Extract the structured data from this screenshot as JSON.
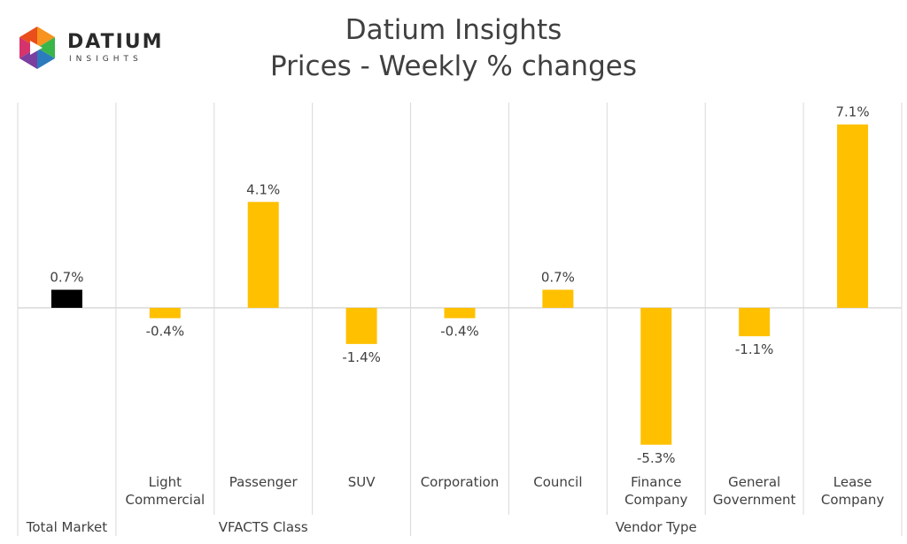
{
  "title": "Datium Insights",
  "subtitle": "Prices - Weekly % changes",
  "logo": {
    "word": "DATIUM",
    "sub": "INSIGHTS"
  },
  "colors": {
    "total": "#000000",
    "bar": "#FFC000",
    "grid": "#D9D9D9",
    "text": "#404040"
  },
  "chart_data": {
    "type": "bar",
    "title": "Datium Insights",
    "subtitle": "Prices - Weekly % changes",
    "categories": [
      [
        "Total Market"
      ],
      [
        "Light",
        "Commercial"
      ],
      [
        "Passenger"
      ],
      [
        "SUV"
      ],
      [
        "Corporation"
      ],
      [
        "Council"
      ],
      [
        "Finance",
        "Company"
      ],
      [
        "General",
        "Government"
      ],
      [
        "Lease",
        "Company"
      ]
    ],
    "groups": [
      {
        "label": "Total Market",
        "start": 0,
        "end": 0
      },
      {
        "label": "VFACTS Class",
        "start": 1,
        "end": 3
      },
      {
        "label": "Vendor Type",
        "start": 4,
        "end": 8
      }
    ],
    "values": [
      0.7,
      -0.4,
      4.1,
      -1.4,
      -0.4,
      0.7,
      -5.3,
      -1.1,
      7.1
    ],
    "data_labels": [
      "0.7%",
      "-0.4%",
      "4.1%",
      "-1.4%",
      "-0.4%",
      "0.7%",
      "-5.3%",
      "-1.1%",
      "7.1%"
    ],
    "xlabel": "",
    "ylabel": "",
    "ylim": [
      -5.8,
      8.0
    ],
    "grid": false,
    "legend": "none"
  }
}
